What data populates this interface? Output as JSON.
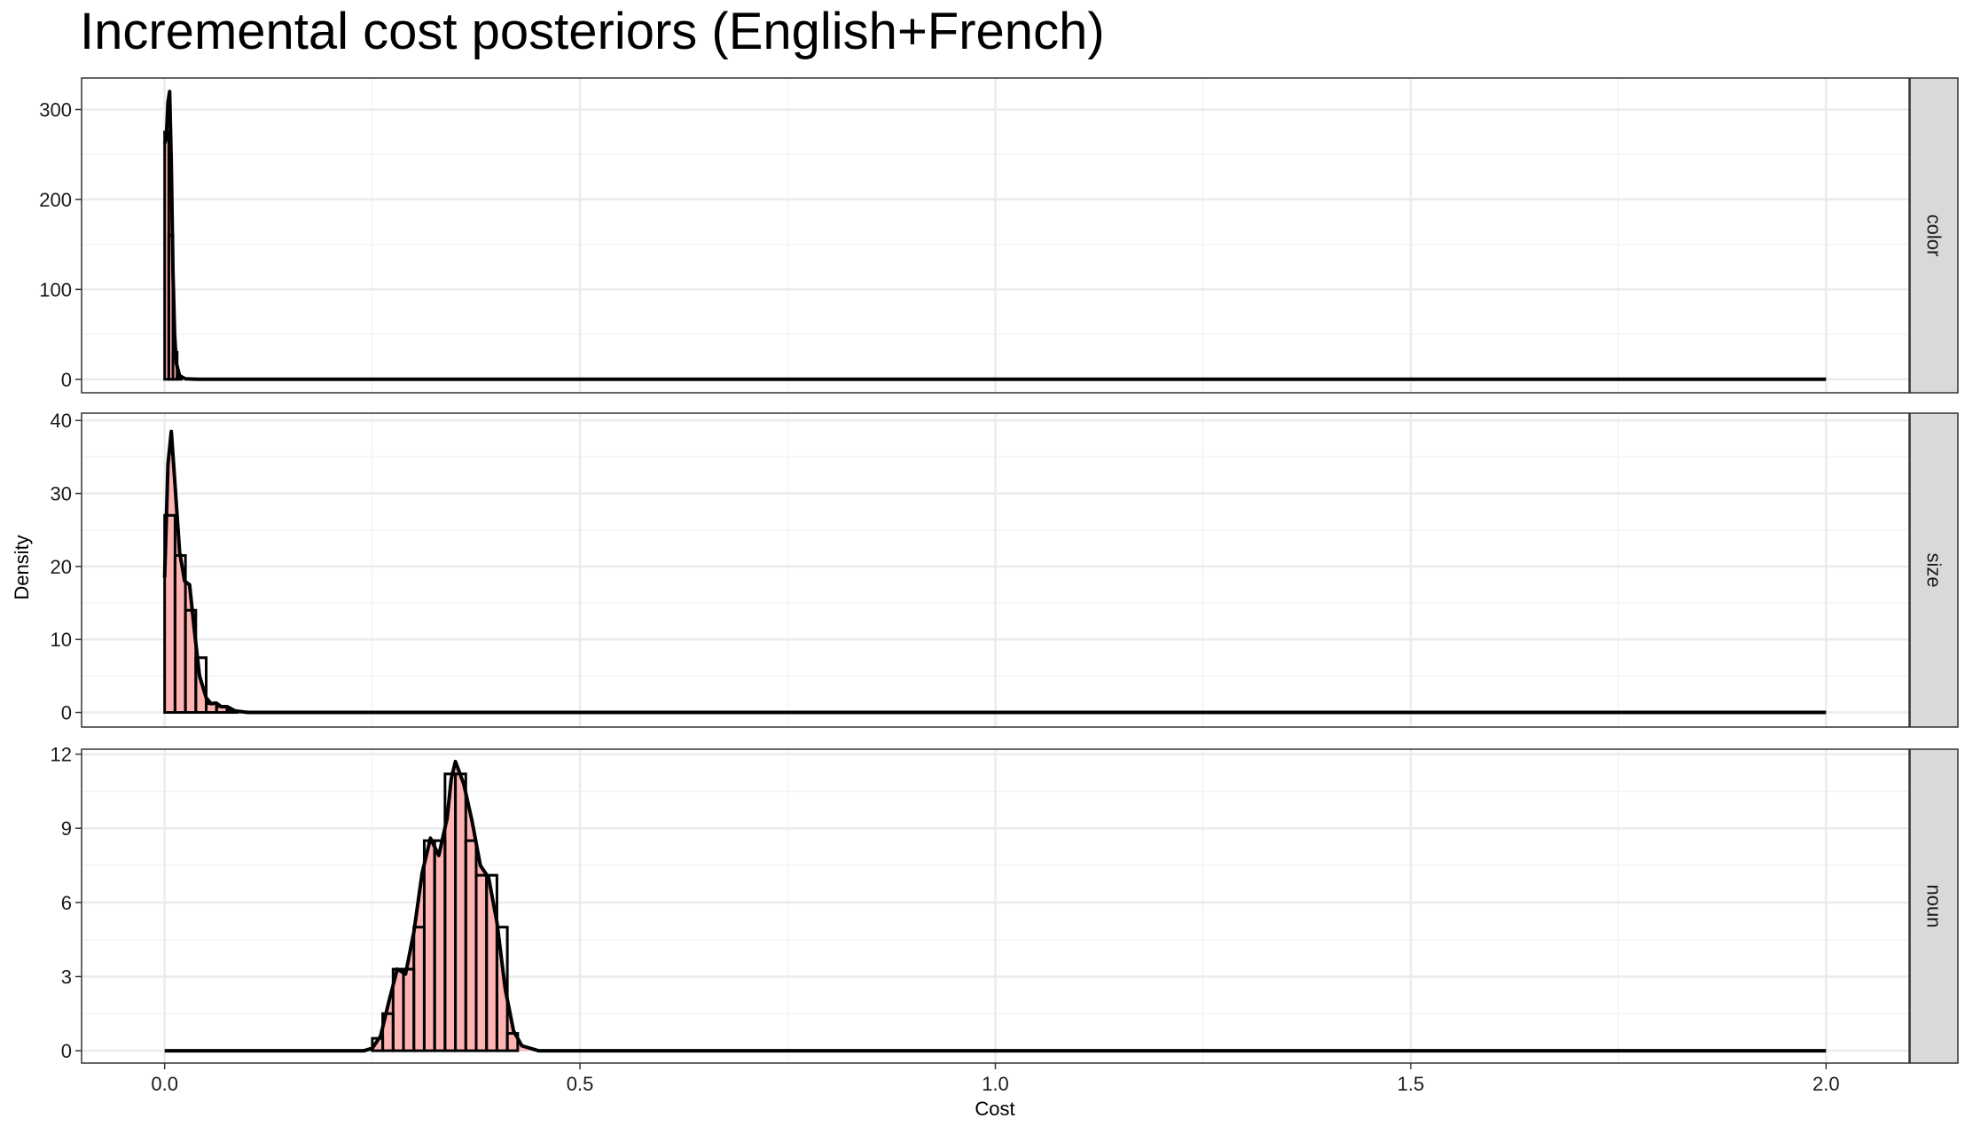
{
  "chart_data": {
    "type": "area",
    "title": "Incremental cost posteriors (English+French)",
    "xlabel": "Cost",
    "ylabel": "Density",
    "xlim": [
      -0.1,
      2.1
    ],
    "x_ticks": [
      0.0,
      0.5,
      1.0,
      1.5,
      2.0
    ],
    "x_tick_labels": [
      "0.0",
      "0.5",
      "1.0",
      "1.5",
      "2.0"
    ],
    "grid": true,
    "colors": {
      "fill": "#FFB3B3",
      "line": "#000000",
      "grid": "#EBEBEB",
      "strip": "#D9D9D9"
    },
    "panels": [
      {
        "strip": "color",
        "ylim": [
          -15,
          335
        ],
        "y_ticks": [
          0,
          100,
          200,
          300
        ],
        "y_tick_labels": [
          "0",
          "100",
          "200",
          "300"
        ],
        "histogram": {
          "bin_width": 0.005,
          "bins": [
            [
              0.0,
              275
            ],
            [
              0.005,
              160
            ],
            [
              0.01,
              30
            ],
            [
              0.015,
              2
            ]
          ]
        },
        "density": [
          [
            0.0,
            262
          ],
          [
            0.002,
            268
          ],
          [
            0.004,
            308
          ],
          [
            0.006,
            320
          ],
          [
            0.008,
            240
          ],
          [
            0.01,
            120
          ],
          [
            0.012,
            50
          ],
          [
            0.014,
            18
          ],
          [
            0.018,
            4
          ],
          [
            0.025,
            0.5
          ],
          [
            0.04,
            0
          ],
          [
            2.0,
            0
          ]
        ]
      },
      {
        "strip": "size",
        "ylim": [
          -2,
          41
        ],
        "y_ticks": [
          0,
          10,
          20,
          30,
          40
        ],
        "y_tick_labels": [
          "0",
          "10",
          "20",
          "30",
          "40"
        ],
        "histogram": {
          "bin_width": 0.0125,
          "bins": [
            [
              0.0,
              27
            ],
            [
              0.0125,
              21.5
            ],
            [
              0.025,
              14
            ],
            [
              0.0375,
              7.5
            ],
            [
              0.05,
              1.2
            ],
            [
              0.0625,
              0.8
            ],
            [
              0.075,
              0.2
            ]
          ]
        },
        "density": [
          [
            0.0,
            18.5
          ],
          [
            0.004,
            34
          ],
          [
            0.008,
            38.5
          ],
          [
            0.012,
            32
          ],
          [
            0.018,
            22
          ],
          [
            0.024,
            18
          ],
          [
            0.03,
            17.5
          ],
          [
            0.036,
            11
          ],
          [
            0.042,
            5
          ],
          [
            0.05,
            2
          ],
          [
            0.056,
            1.2
          ],
          [
            0.062,
            1.3
          ],
          [
            0.068,
            0.8
          ],
          [
            0.075,
            0.8
          ],
          [
            0.085,
            0.2
          ],
          [
            0.1,
            0
          ],
          [
            2.0,
            0
          ]
        ]
      },
      {
        "strip": "noun",
        "ylim": [
          -0.5,
          12.2
        ],
        "y_ticks": [
          0,
          3,
          6,
          9,
          12
        ],
        "y_tick_labels": [
          "0",
          "3",
          "6",
          "9",
          "12"
        ],
        "histogram": {
          "bin_width": 0.0125,
          "bins": [
            [
              0.25,
              0.5
            ],
            [
              0.2625,
              1.5
            ],
            [
              0.275,
              3.3
            ],
            [
              0.2875,
              3.3
            ],
            [
              0.3,
              5.0
            ],
            [
              0.3125,
              8.5
            ],
            [
              0.325,
              8.5
            ],
            [
              0.3375,
              11.2
            ],
            [
              0.35,
              11.2
            ],
            [
              0.3625,
              8.5
            ],
            [
              0.375,
              7.1
            ],
            [
              0.3875,
              7.1
            ],
            [
              0.4,
              5.0
            ],
            [
              0.4125,
              0.7
            ]
          ]
        },
        "density": [
          [
            0.0,
            0
          ],
          [
            0.24,
            0
          ],
          [
            0.25,
            0.1
          ],
          [
            0.26,
            0.6
          ],
          [
            0.27,
            2.0
          ],
          [
            0.28,
            3.3
          ],
          [
            0.29,
            3.1
          ],
          [
            0.3,
            4.8
          ],
          [
            0.31,
            7.2
          ],
          [
            0.32,
            8.6
          ],
          [
            0.33,
            7.9
          ],
          [
            0.34,
            9.4
          ],
          [
            0.345,
            11.0
          ],
          [
            0.35,
            11.7
          ],
          [
            0.36,
            10.8
          ],
          [
            0.37,
            9.3
          ],
          [
            0.38,
            7.5
          ],
          [
            0.39,
            7.0
          ],
          [
            0.4,
            5.2
          ],
          [
            0.41,
            2.5
          ],
          [
            0.42,
            0.8
          ],
          [
            0.43,
            0.2
          ],
          [
            0.45,
            0
          ],
          [
            2.0,
            0
          ]
        ]
      }
    ]
  }
}
